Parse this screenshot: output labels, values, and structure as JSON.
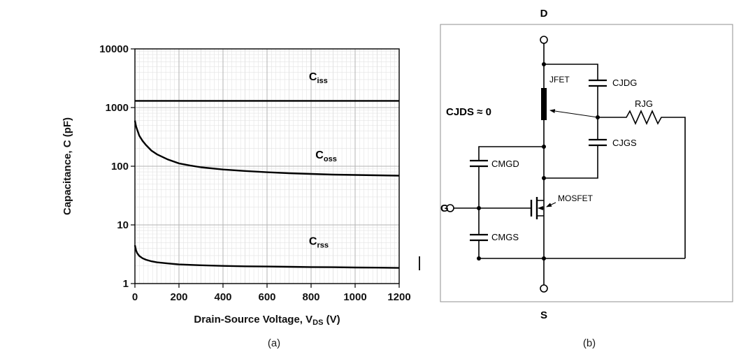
{
  "figure": {
    "captions": {
      "a": "(a)",
      "b": "(b)"
    }
  },
  "chart_data": {
    "type": "line",
    "title": "",
    "ylabel": "Capacitance, C (pF)",
    "xlabel": {
      "pre": "Drain-Source Voltage, V",
      "sub": "DS",
      "post": " (V)"
    },
    "xlim": [
      0,
      1200
    ],
    "ylim": [
      1,
      10000
    ],
    "y_scale": "log",
    "x_ticks": [
      0,
      200,
      400,
      600,
      800,
      1000,
      1200
    ],
    "y_ticks": [
      1,
      10,
      100,
      1000,
      10000
    ],
    "grid": "fine light-gray minor grid, log vertical scale",
    "legend_position": "inline-labels",
    "curve_color": "#000000",
    "series": [
      {
        "name": "Ciss",
        "label_pre": "C",
        "label_sub": "iss",
        "label_at": [
          790,
          2900
        ],
        "x": [
          0,
          1200
        ],
        "y": [
          1300,
          1300
        ]
      },
      {
        "name": "Coss",
        "label_pre": "C",
        "label_sub": "oss",
        "label_at": [
          820,
          135
        ],
        "x": [
          0,
          5,
          10,
          20,
          35,
          50,
          75,
          100,
          150,
          200,
          250,
          300,
          400,
          500,
          600,
          700,
          800,
          900,
          1000,
          1100,
          1200
        ],
        "y": [
          600,
          480,
          420,
          330,
          270,
          230,
          185,
          160,
          130,
          112,
          103,
          96,
          88,
          83,
          79,
          76,
          74,
          72,
          71,
          70,
          69
        ]
      },
      {
        "name": "Crss",
        "label_pre": "C",
        "label_sub": "rss",
        "label_at": [
          790,
          4.6
        ],
        "x": [
          0,
          5,
          10,
          20,
          35,
          50,
          75,
          100,
          150,
          200,
          300,
          400,
          500,
          600,
          700,
          800,
          900,
          1000,
          1100,
          1200
        ],
        "y": [
          4.5,
          3.7,
          3.3,
          2.95,
          2.7,
          2.55,
          2.4,
          2.3,
          2.2,
          2.12,
          2.05,
          2.0,
          1.97,
          1.95,
          1.93,
          1.91,
          1.9,
          1.88,
          1.87,
          1.85
        ]
      }
    ]
  },
  "circuit": {
    "terminal_d": "D",
    "terminal_g": "G",
    "terminal_s": "S",
    "cjds_note": "CJDS ≈ 0",
    "jfet_label": "JFET",
    "mosfet_label": "MOSFET",
    "cjdg_label": "CJDG",
    "cjgs_label": "CJGS",
    "rjg_label": "RJG",
    "cmgd_label": "CMGD",
    "cmgs_label": "CMGS"
  }
}
